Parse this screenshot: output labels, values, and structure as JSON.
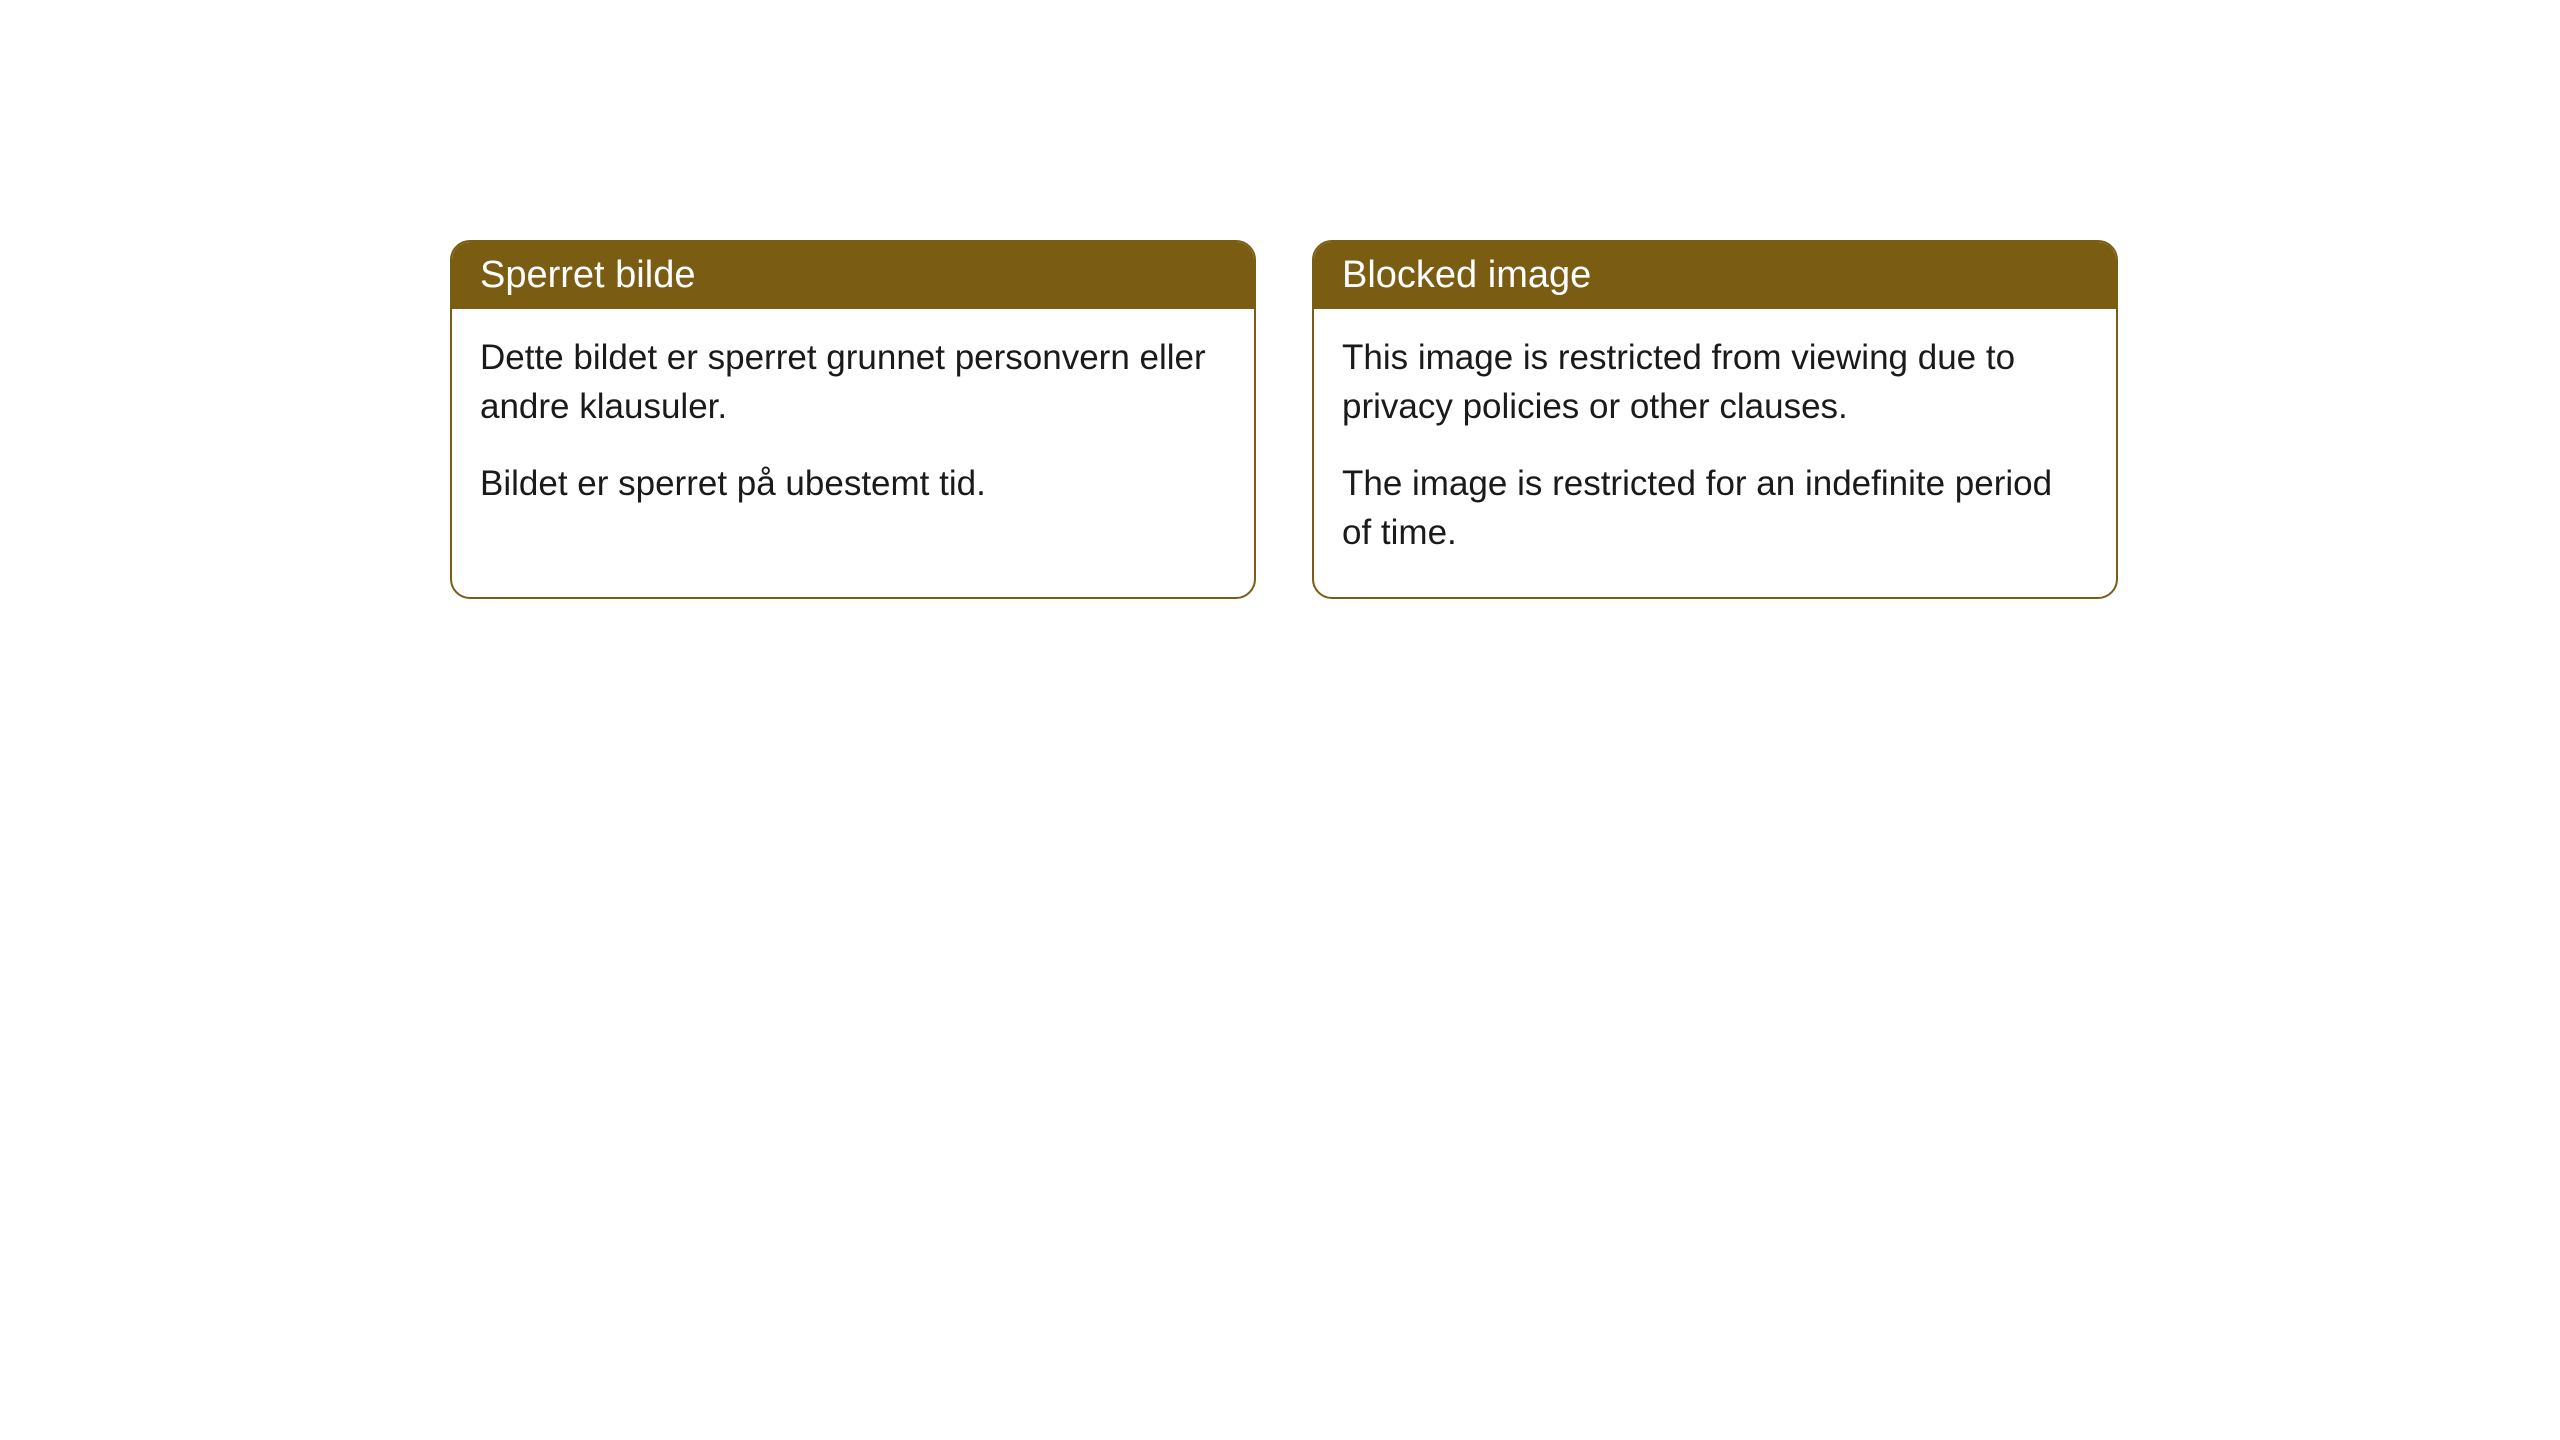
{
  "cards": [
    {
      "title": "Sperret bilde",
      "para1": "Dette bildet er sperret grunnet personvern eller andre klausuler.",
      "para2": "Bildet er sperret på ubestemt tid."
    },
    {
      "title": "Blocked image",
      "para1": "This image is restricted from viewing due to privacy policies or other clauses.",
      "para2": "The image is restricted for an indefinite period of time."
    }
  ],
  "style": {
    "header_bg": "#7a5d13",
    "header_text_color": "#ffffff",
    "border_color": "#7a5d13",
    "body_bg": "#ffffff",
    "body_text_color": "#1a1a1a",
    "page_bg": "#ffffff",
    "border_radius": 20,
    "title_fontsize": 38,
    "body_fontsize": 35
  }
}
